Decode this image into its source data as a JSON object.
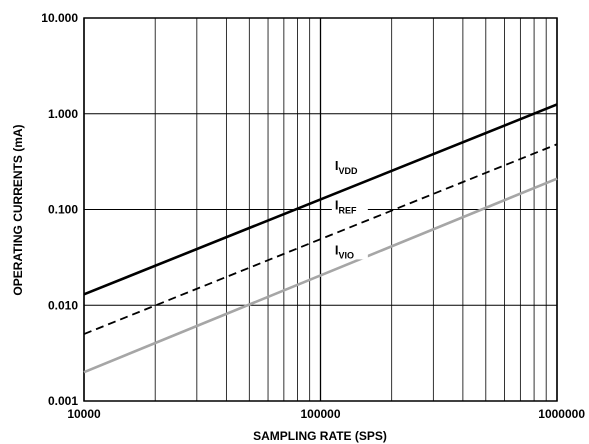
{
  "chart_data": {
    "type": "line",
    "xlabel": "SAMPLING RATE (SPS)",
    "ylabel": "OPERATING CURRENTS (mA)",
    "xscale": "log",
    "yscale": "log",
    "xlim": [
      10000,
      1000000
    ],
    "ylim": [
      0.001,
      10
    ],
    "grid": true,
    "legend": "inline labels",
    "x_ticks": [
      {
        "value": 10000,
        "label": "10000"
      },
      {
        "value": 100000,
        "label": "100000"
      },
      {
        "value": 1000000,
        "label": "1000000"
      }
    ],
    "y_ticks": [
      {
        "value": 0.001,
        "label": "0.001"
      },
      {
        "value": 0.01,
        "label": "0.010"
      },
      {
        "value": 0.1,
        "label": "0.100"
      },
      {
        "value": 1,
        "label": "1.000"
      },
      {
        "value": 10,
        "label": "10.000"
      }
    ],
    "series": [
      {
        "name": "I",
        "sub": "VDD",
        "style": "solid",
        "color": "#000000",
        "x": [
          10000,
          1000000
        ],
        "y": [
          0.013,
          1.25
        ],
        "label_at": {
          "x": 115000,
          "y": 0.26
        }
      },
      {
        "name": "I",
        "sub": "REF",
        "style": "dashed",
        "color": "#000000",
        "x": [
          10000,
          1000000
        ],
        "y": [
          0.005,
          0.48
        ],
        "label_at": {
          "x": 115000,
          "y": 0.1
        }
      },
      {
        "name": "I",
        "sub": "VIO",
        "style": "solid",
        "color": "#a6a6a6",
        "x": [
          10000,
          1000000
        ],
        "y": [
          0.002,
          0.21
        ],
        "label_at": {
          "x": 115000,
          "y": 0.034
        }
      }
    ]
  }
}
